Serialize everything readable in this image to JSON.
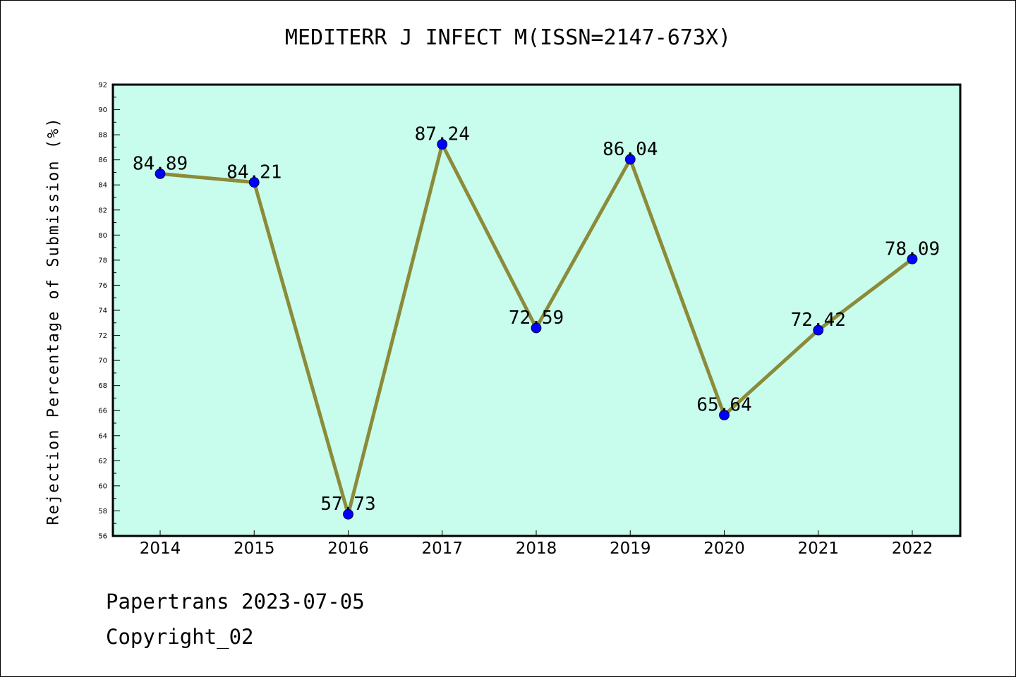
{
  "chart_data": {
    "type": "line",
    "title": "MEDITERR J INFECT M(ISSN=2147-673X)",
    "xlabel": "",
    "ylabel": "Rejection Percentage of Submission (%)",
    "categories": [
      "2014",
      "2015",
      "2016",
      "2017",
      "2018",
      "2019",
      "2020",
      "2021",
      "2022"
    ],
    "series": [
      {
        "values": [
          84.89,
          84.21,
          57.73,
          87.24,
          72.59,
          86.04,
          65.64,
          72.42,
          78.09
        ],
        "labels": [
          "84.89",
          "84.21",
          "57.73",
          "87.24",
          "72.59",
          "86.04",
          "65.64",
          "72.42",
          "78.09"
        ]
      }
    ],
    "ylim": [
      56,
      92
    ],
    "ytick_step": 2,
    "grid": false,
    "colors": {
      "plot_background": "#c8fcec",
      "line": "#8b8b3a",
      "marker": "#0000ff"
    }
  },
  "footer": {
    "date_line": "Papertrans 2023-07-05",
    "copyright_line": "Copyright_02"
  }
}
